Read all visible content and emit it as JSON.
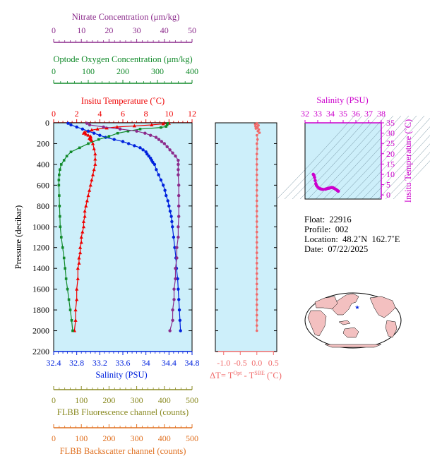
{
  "colors": {
    "nitrate": "#8b2a8b",
    "oxygen": "#118a2a",
    "temperature": "#ee0000",
    "salinity": "#0022dd",
    "ts": "#cc00cc",
    "delta": "#f06a6a",
    "fluorescence": "#8a8a22",
    "backscatter": "#e07020",
    "panel": "#cdeffa",
    "map_land": "#f3c0c0",
    "map_ocean": "#ffffff"
  },
  "labels": {
    "nitrate_title": "Nitrate Concentration (μm/kg)",
    "oxygen_title": "Optode Oxygen Concentration (μm/kg)",
    "temperature_title": "Insitu Temperature (˚C)",
    "pressure_title": "Pressure (decibar)",
    "salinity_title": "Salinity (PSU)",
    "delta_title_prefix": "ΔT= T",
    "delta_title_sup1": "Opt",
    "delta_title_mid": " - T",
    "delta_title_sup2": "SBE",
    "delta_title_suffix": " (˚C)",
    "fluorescence_title": "FLBB Fluorescence channel (counts)",
    "backscatter_title": "FLBB Backscatter channel (counts)",
    "ts_top_title": "Salinity (PSU)",
    "ts_right_title": "Insitu Temperature (˚C)"
  },
  "info": {
    "float": "Float:  22916",
    "profile": "Profile:  002",
    "location": "Location:  48.2˚N  162.7˚E",
    "date": "Date:  07/22/2025"
  },
  "chart_data": [
    {
      "type": "line",
      "name": "main-profile",
      "ylabel": "Pressure (decibar)",
      "ylim": [
        2200,
        0
      ],
      "y_ticks": [
        0,
        200,
        400,
        600,
        800,
        1000,
        1200,
        1400,
        1600,
        1800,
        2000,
        2200
      ],
      "axes": {
        "nitrate": {
          "label": "Nitrate Concentration (μm/kg)",
          "range": [
            0,
            50
          ],
          "ticks": [
            0,
            10,
            20,
            30,
            40,
            50
          ]
        },
        "oxygen": {
          "label": "Optode Oxygen Concentration (μm/kg)",
          "range": [
            0,
            400
          ],
          "ticks": [
            0,
            100,
            200,
            300,
            400
          ]
        },
        "temperature": {
          "label": "Insitu Temperature (˚C)",
          "range": [
            0,
            12
          ],
          "ticks": [
            0,
            2,
            4,
            6,
            8,
            10,
            12
          ]
        },
        "salinity": {
          "label": "Salinity (PSU)",
          "range": [
            32.4,
            34.8
          ],
          "ticks": [
            32.4,
            32.8,
            33.2,
            33.6,
            34.0,
            34.4,
            34.8
          ]
        },
        "fluorescence": {
          "label": "FLBB Fluorescence channel (counts)",
          "range": [
            0,
            500
          ],
          "ticks": [
            0,
            100,
            200,
            300,
            400,
            500
          ]
        },
        "backscatter": {
          "label": "FLBB Backscatter channel (counts)",
          "range": [
            0,
            500
          ],
          "ticks": [
            0,
            100,
            200,
            300,
            400,
            500
          ]
        }
      },
      "series": [
        {
          "key": "temperature",
          "marker": "triangle",
          "points": [
            [
              10.0,
              5
            ],
            [
              9.5,
              10
            ],
            [
              8.5,
              20
            ],
            [
              7.0,
              30
            ],
            [
              5.5,
              40
            ],
            [
              4.6,
              50
            ],
            [
              3.8,
              60
            ],
            [
              3.3,
              70
            ],
            [
              3.0,
              80
            ],
            [
              2.7,
              90
            ],
            [
              2.6,
              100
            ],
            [
              2.8,
              110
            ],
            [
              3.0,
              120
            ],
            [
              3.2,
              130
            ],
            [
              3.2,
              140
            ],
            [
              3.1,
              150
            ],
            [
              3.2,
              160
            ],
            [
              3.3,
              170
            ],
            [
              3.4,
              200
            ],
            [
              3.5,
              250
            ],
            [
              3.6,
              300
            ],
            [
              3.6,
              350
            ],
            [
              3.6,
              400
            ],
            [
              3.5,
              450
            ],
            [
              3.4,
              500
            ],
            [
              3.3,
              550
            ],
            [
              3.2,
              600
            ],
            [
              3.1,
              650
            ],
            [
              3.0,
              700
            ],
            [
              2.9,
              750
            ],
            [
              2.8,
              800
            ],
            [
              2.7,
              850
            ],
            [
              2.7,
              900
            ],
            [
              2.6,
              950
            ],
            [
              2.6,
              1000
            ],
            [
              2.5,
              1050
            ],
            [
              2.4,
              1100
            ],
            [
              2.4,
              1150
            ],
            [
              2.3,
              1200
            ],
            [
              2.3,
              1250
            ],
            [
              2.2,
              1300
            ],
            [
              2.2,
              1350
            ],
            [
              2.1,
              1400
            ],
            [
              2.1,
              1500
            ],
            [
              2.0,
              1600
            ],
            [
              2.0,
              1700
            ],
            [
              1.9,
              1800
            ],
            [
              1.9,
              1900
            ],
            [
              1.8,
              2000
            ]
          ]
        },
        {
          "key": "salinity",
          "marker": "circle",
          "points": [
            [
              32.65,
              5
            ],
            [
              32.7,
              20
            ],
            [
              32.8,
              40
            ],
            [
              32.9,
              60
            ],
            [
              33.0,
              80
            ],
            [
              33.1,
              100
            ],
            [
              33.2,
              120
            ],
            [
              33.3,
              140
            ],
            [
              33.45,
              160
            ],
            [
              33.6,
              180
            ],
            [
              33.7,
              200
            ],
            [
              33.8,
              220
            ],
            [
              33.9,
              240
            ],
            [
              33.95,
              260
            ],
            [
              34.0,
              280
            ],
            [
              34.02,
              300
            ],
            [
              34.05,
              320
            ],
            [
              34.08,
              340
            ],
            [
              34.1,
              360
            ],
            [
              34.12,
              380
            ],
            [
              34.15,
              400
            ],
            [
              34.18,
              450
            ],
            [
              34.22,
              500
            ],
            [
              34.26,
              550
            ],
            [
              34.3,
              600
            ],
            [
              34.33,
              650
            ],
            [
              34.35,
              700
            ],
            [
              34.38,
              750
            ],
            [
              34.4,
              800
            ],
            [
              34.42,
              850
            ],
            [
              34.44,
              900
            ],
            [
              34.45,
              950
            ],
            [
              34.46,
              1000
            ],
            [
              34.48,
              1100
            ],
            [
              34.5,
              1200
            ],
            [
              34.52,
              1300
            ],
            [
              34.53,
              1400
            ],
            [
              34.55,
              1500
            ],
            [
              34.56,
              1600
            ],
            [
              34.57,
              1700
            ],
            [
              34.58,
              1800
            ],
            [
              34.59,
              1900
            ],
            [
              34.6,
              2000
            ]
          ]
        },
        {
          "key": "oxygen",
          "marker": "square",
          "points": [
            [
              330,
              5
            ],
            [
              328,
              20
            ],
            [
              325,
              35
            ],
            [
              310,
              45
            ],
            [
              250,
              60
            ],
            [
              215,
              80
            ],
            [
              185,
              100
            ],
            [
              160,
              130
            ],
            [
              130,
              160
            ],
            [
              100,
              200
            ],
            [
              75,
              240
            ],
            [
              50,
              280
            ],
            [
              38,
              320
            ],
            [
              30,
              360
            ],
            [
              22,
              400
            ],
            [
              18,
              450
            ],
            [
              16,
              500
            ],
            [
              15,
              550
            ],
            [
              15,
              600
            ],
            [
              16,
              700
            ],
            [
              17,
              800
            ],
            [
              18,
              900
            ],
            [
              19,
              1000
            ],
            [
              22,
              1100
            ],
            [
              26,
              1200
            ],
            [
              30,
              1300
            ],
            [
              33,
              1400
            ],
            [
              36,
              1500
            ],
            [
              40,
              1600
            ],
            [
              44,
              1700
            ],
            [
              48,
              1800
            ],
            [
              52,
              1900
            ],
            [
              55,
              2000
            ]
          ]
        },
        {
          "key": "nitrate",
          "marker": "circle",
          "points": [
            [
              12,
              5
            ],
            [
              13,
              20
            ],
            [
              18,
              40
            ],
            [
              24,
              60
            ],
            [
              30,
              80
            ],
            [
              33,
              100
            ],
            [
              35,
              120
            ],
            [
              37,
              140
            ],
            [
              38,
              160
            ],
            [
              39,
              180
            ],
            [
              40,
              200
            ],
            [
              41,
              230
            ],
            [
              42,
              260
            ],
            [
              43,
              290
            ],
            [
              44,
              320
            ],
            [
              45,
              360
            ],
            [
              45,
              400
            ],
            [
              45,
              450
            ],
            [
              45,
              500
            ],
            [
              45.2,
              600
            ],
            [
              45.2,
              700
            ],
            [
              45.2,
              800
            ],
            [
              45.2,
              900
            ],
            [
              45,
              1000
            ],
            [
              45,
              1100
            ],
            [
              44.5,
              1200
            ],
            [
              44.5,
              1300
            ],
            [
              44,
              1400
            ],
            [
              44,
              1500
            ],
            [
              43.5,
              1600
            ],
            [
              43.5,
              1700
            ],
            [
              43,
              1800
            ],
            [
              43,
              1900
            ],
            [
              42,
              2000
            ]
          ]
        }
      ]
    },
    {
      "type": "scatter",
      "name": "delta-t",
      "xlabel": "ΔT= T^Opt - T^SBE (˚C)",
      "xlim": [
        -1.25,
        0.6
      ],
      "x_ticks": [
        -1.0,
        -0.5,
        0.0,
        0.5
      ],
      "ylim": [
        2200,
        0
      ],
      "points": [
        [
          0.0,
          5
        ],
        [
          -0.05,
          15
        ],
        [
          0.05,
          25
        ],
        [
          -0.04,
          35
        ],
        [
          0.02,
          45
        ],
        [
          -0.03,
          55
        ],
        [
          0.06,
          65
        ],
        [
          0.03,
          80
        ],
        [
          0.08,
          95
        ],
        [
          0.0,
          120
        ],
        [
          0.02,
          160
        ],
        [
          0.0,
          200
        ],
        [
          0.01,
          250
        ],
        [
          0.0,
          300
        ],
        [
          0.0,
          350
        ],
        [
          0.0,
          400
        ],
        [
          0.0,
          450
        ],
        [
          0.0,
          500
        ],
        [
          0.0,
          550
        ],
        [
          0.0,
          600
        ],
        [
          0.0,
          650
        ],
        [
          0.0,
          700
        ],
        [
          0.0,
          750
        ],
        [
          0.0,
          800
        ],
        [
          0.0,
          850
        ],
        [
          0.0,
          900
        ],
        [
          0.0,
          950
        ],
        [
          0.0,
          1000
        ],
        [
          0.0,
          1050
        ],
        [
          0.0,
          1100
        ],
        [
          0.0,
          1150
        ],
        [
          0.0,
          1200
        ],
        [
          0.0,
          1250
        ],
        [
          0.0,
          1300
        ],
        [
          0.0,
          1350
        ],
        [
          0.0,
          1400
        ],
        [
          0.0,
          1450
        ],
        [
          0.0,
          1500
        ],
        [
          0.0,
          1550
        ],
        [
          0.0,
          1600
        ],
        [
          0.0,
          1650
        ],
        [
          0.0,
          1700
        ],
        [
          0.0,
          1750
        ],
        [
          0.0,
          1800
        ],
        [
          0.0,
          1850
        ],
        [
          0.0,
          1900
        ],
        [
          0.0,
          1950
        ],
        [
          0.0,
          2000
        ]
      ]
    },
    {
      "type": "scatter",
      "name": "ts-diagram",
      "xlabel": "Salinity (PSU)",
      "ylabel": "Insitu Temperature (˚C)",
      "xlim": [
        32,
        38
      ],
      "ylim": [
        -2,
        35
      ],
      "x_ticks": [
        32,
        33,
        34,
        35,
        36,
        37,
        38
      ],
      "y_ticks": [
        0,
        5,
        10,
        15,
        20,
        25,
        30,
        35
      ],
      "points": [
        [
          32.65,
          10.0
        ],
        [
          32.7,
          9.5
        ],
        [
          32.75,
          8.5
        ],
        [
          32.8,
          7.0
        ],
        [
          32.85,
          5.5
        ],
        [
          32.9,
          4.6
        ],
        [
          33.0,
          3.8
        ],
        [
          33.1,
          3.3
        ],
        [
          33.2,
          3.0
        ],
        [
          33.3,
          2.8
        ],
        [
          33.4,
          2.7
        ],
        [
          33.6,
          2.8
        ],
        [
          33.7,
          3.0
        ],
        [
          33.8,
          3.2
        ],
        [
          33.9,
          3.3
        ],
        [
          34.0,
          3.5
        ],
        [
          34.1,
          3.6
        ],
        [
          34.2,
          3.5
        ],
        [
          34.3,
          3.2
        ],
        [
          34.4,
          2.8
        ],
        [
          34.5,
          2.4
        ],
        [
          34.55,
          2.1
        ],
        [
          34.6,
          1.9
        ],
        [
          34.62,
          1.8
        ]
      ]
    }
  ]
}
